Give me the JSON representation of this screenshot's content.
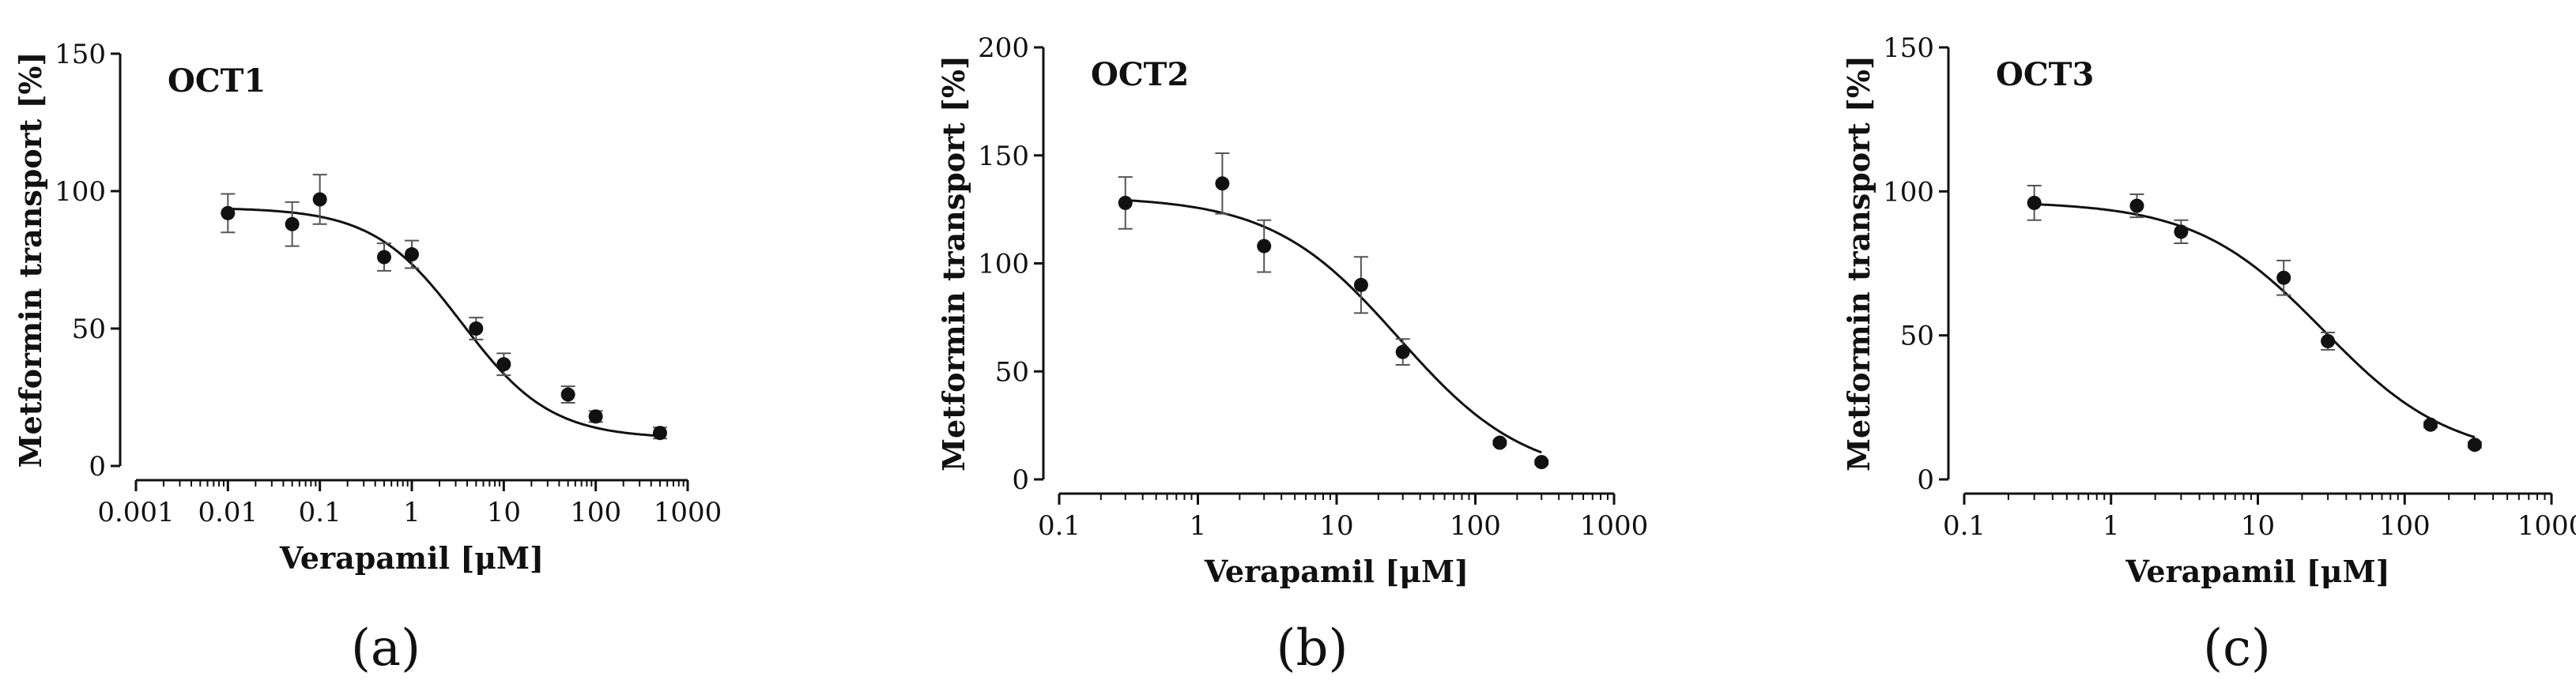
{
  "figure": {
    "captions": [
      "(a)",
      "(b)",
      "(c)"
    ]
  },
  "chart_data": [
    {
      "type": "scatter",
      "panel_label": "(a)",
      "title": "OCT1",
      "xlabel": "Verapamil [μM]",
      "ylabel": "Metformin transport [%]",
      "x_scale": "log",
      "xlim": [
        0.001,
        1000
      ],
      "ylim": [
        0,
        150
      ],
      "x_ticks": [
        0.001,
        0.01,
        0.1,
        1,
        10,
        100,
        1000
      ],
      "x_tick_labels": [
        "0.001",
        "0.01",
        "0.1",
        "1",
        "10",
        "100",
        "1000"
      ],
      "y_ticks": [
        0,
        50,
        100,
        150
      ],
      "y_tick_labels": [
        "0",
        "50",
        "100",
        "150"
      ],
      "grid": false,
      "series": [
        {
          "name": "OCT1",
          "x": [
            0.01,
            0.05,
            0.1,
            0.5,
            1,
            5,
            10,
            50,
            100,
            500
          ],
          "y": [
            92,
            88,
            97,
            76,
            77,
            50,
            37,
            26,
            18,
            12
          ],
          "error": [
            7,
            8,
            9,
            5,
            5,
            4,
            4,
            3,
            2,
            2
          ]
        }
      ],
      "fit": {
        "top": 94,
        "bottom": 10,
        "ic50": 3.5,
        "hill": 0.9
      }
    },
    {
      "type": "scatter",
      "panel_label": "(b)",
      "title": "OCT2",
      "xlabel": "Verapamil [μM]",
      "ylabel": "Metformin transport [%]",
      "x_scale": "log",
      "xlim": [
        0.1,
        1000
      ],
      "ylim": [
        0,
        200
      ],
      "x_ticks": [
        0.1,
        1,
        10,
        100,
        1000
      ],
      "x_tick_labels": [
        "0.1",
        "1",
        "10",
        "100",
        "1000"
      ],
      "y_ticks": [
        0,
        50,
        100,
        150,
        200
      ],
      "y_tick_labels": [
        "0",
        "50",
        "100",
        "150",
        "200"
      ],
      "grid": false,
      "series": [
        {
          "name": "OCT2",
          "x": [
            0.3,
            1.5,
            3,
            15,
            30,
            150,
            300
          ],
          "y": [
            128,
            137,
            108,
            90,
            59,
            17,
            8
          ],
          "error": [
            12,
            14,
            12,
            13,
            6,
            1,
            1
          ]
        }
      ],
      "fit": {
        "top": 131,
        "bottom": 0,
        "ic50": 28,
        "hill": 0.95
      }
    },
    {
      "type": "scatter",
      "panel_label": "(c)",
      "title": "OCT3",
      "xlabel": "Verapamil [μM]",
      "ylabel": "Metformin transport [%]",
      "x_scale": "log",
      "xlim": [
        0.1,
        1000
      ],
      "ylim": [
        0,
        150
      ],
      "x_ticks": [
        0.1,
        1,
        10,
        100,
        1000
      ],
      "x_tick_labels": [
        "0.1",
        "1",
        "10",
        "100",
        "1000"
      ],
      "y_ticks": [
        0,
        50,
        100,
        150
      ],
      "y_tick_labels": [
        "0",
        "50",
        "100",
        "150"
      ],
      "grid": false,
      "series": [
        {
          "name": "OCT3",
          "x": [
            0.3,
            1.5,
            3,
            15,
            30,
            150,
            300
          ],
          "y": [
            96,
            95,
            86,
            70,
            48,
            19,
            12
          ],
          "error": [
            6,
            4,
            4,
            6,
            3,
            1,
            1
          ]
        }
      ],
      "fit": {
        "top": 96.5,
        "bottom": 7,
        "ic50": 28,
        "hill": 1.0
      }
    }
  ]
}
